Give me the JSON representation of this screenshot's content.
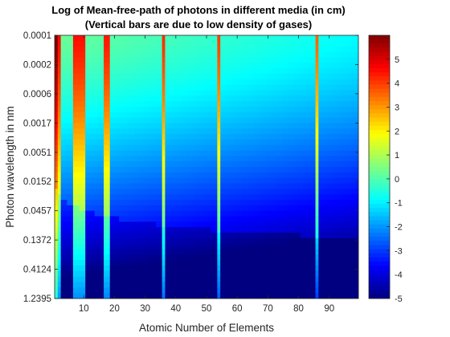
{
  "chart_data": {
    "type": "heatmap",
    "title": "Log of Mean-free-path of photons in different media (in cm)",
    "subtitle": "(Vertical bars are due to low density of gases)",
    "xlabel": "Atomic Number of Elements",
    "ylabel": "Photon wavelength in nm",
    "xlim": [
      0.5,
      99.5
    ],
    "x_ticks": [
      10,
      20,
      30,
      40,
      50,
      60,
      70,
      80,
      90
    ],
    "y_tick_labels": [
      "0.0001",
      "0.0002",
      "0.0006",
      "0.0017",
      "0.0051",
      "0.0152",
      "0.0457",
      "0.1372",
      "0.4124",
      "1.2395"
    ],
    "y_scale": "log",
    "y_direction": "reverse",
    "colorbar": {
      "min": -5,
      "max": 6,
      "ticks": [
        5,
        4,
        3,
        2,
        1,
        0,
        -1,
        -2,
        -3,
        -4,
        -5
      ],
      "colormap": "jet"
    },
    "gas_elements": [
      1,
      2,
      7,
      8,
      9,
      10,
      17,
      18,
      36,
      54,
      86
    ],
    "grid": false
  }
}
